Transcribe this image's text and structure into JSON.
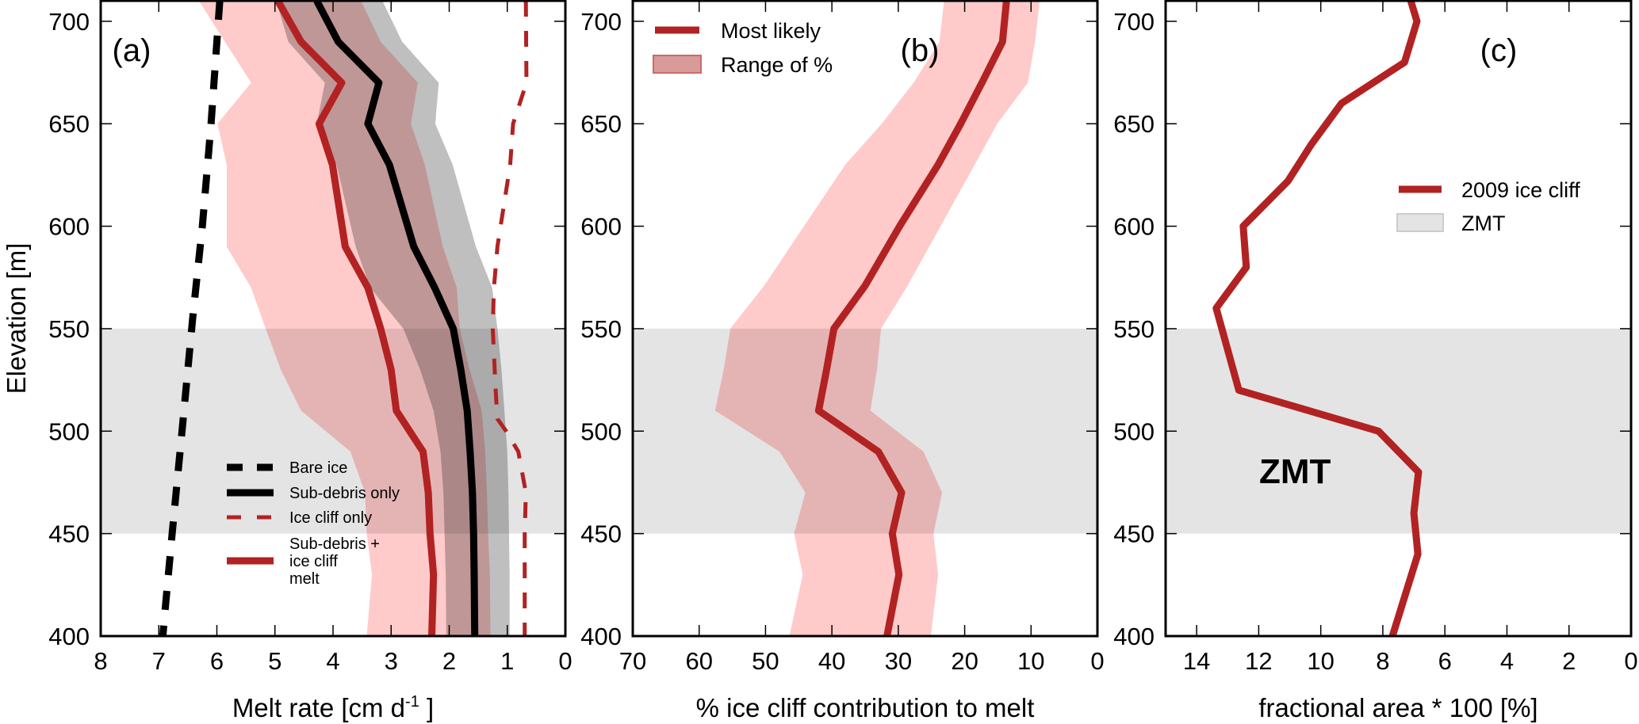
{
  "colors": {
    "red": "#b22222",
    "pink_band": "#ffcaca",
    "gray_band": "#bfbfbf",
    "zmt_band": "#e4e4e4",
    "black": "#000000"
  },
  "chart_data": [
    {
      "type": "line",
      "panel_label": "(a)",
      "xlabel": {
        "text": "Melt rate [cm d",
        "superscript": "-1",
        "suffix": " ]"
      },
      "ylabel": "Elevation [m]",
      "xlim": [
        8,
        0
      ],
      "ylim": [
        400,
        710
      ],
      "xticks": [
        8,
        7,
        6,
        5,
        4,
        3,
        2,
        1,
        0
      ],
      "yticks": [
        400,
        450,
        500,
        550,
        600,
        650,
        700
      ],
      "zmt_band": [
        450,
        550
      ],
      "bands": [
        {
          "name": "Sub-debris only range",
          "color_key": "gray_band",
          "elevation": [
            710,
            690,
            670,
            650,
            630,
            590,
            570,
            550,
            530,
            510,
            490,
            470,
            450,
            430,
            400
          ],
          "left": [
            4.98,
            4.77,
            4.14,
            4.28,
            3.94,
            3.61,
            3.36,
            2.79,
            2.5,
            2.27,
            2.15,
            2.1,
            2.08,
            2.06,
            2.05
          ],
          "right": [
            3.15,
            2.81,
            2.18,
            2.24,
            1.94,
            1.54,
            1.26,
            1.17,
            1.1,
            1.05,
            1.0,
            0.98,
            0.97,
            0.96,
            0.96
          ]
        },
        {
          "name": "Sub-debris + ice cliff range",
          "color_key": "pink_band",
          "elevation": [
            710,
            690,
            670,
            650,
            630,
            590,
            570,
            550,
            530,
            510,
            490,
            470,
            450,
            430,
            400
          ],
          "left": [
            6.31,
            5.86,
            5.41,
            5.99,
            5.83,
            5.83,
            5.41,
            5.16,
            4.9,
            4.55,
            3.7,
            3.45,
            3.42,
            3.33,
            3.42
          ],
          "right": [
            3.52,
            3.18,
            2.54,
            2.66,
            2.42,
            2.11,
            1.87,
            1.82,
            1.65,
            1.44,
            1.38,
            1.35,
            1.33,
            1.3,
            1.29
          ]
        }
      ],
      "series": [
        {
          "name": "Bare ice",
          "style": "dash-thick",
          "color_key": "black",
          "elevation": [
            710,
            650,
            600,
            557,
            500,
            450,
            410,
            400
          ],
          "values": [
            5.95,
            6.1,
            6.25,
            6.41,
            6.6,
            6.77,
            6.9,
            6.93
          ]
        },
        {
          "name": "Sub-debris only",
          "style": "solid",
          "color_key": "black",
          "elevation": [
            710,
            690,
            670,
            650,
            630,
            590,
            570,
            550,
            530,
            510,
            490,
            470,
            450,
            430,
            400
          ],
          "values": [
            4.28,
            3.91,
            3.21,
            3.4,
            3.03,
            2.61,
            2.25,
            1.93,
            1.8,
            1.69,
            1.64,
            1.6,
            1.58,
            1.57,
            1.56
          ]
        },
        {
          "name": "Ice cliff only",
          "style": "dash-thin",
          "color_key": "red",
          "elevation": [
            710,
            670,
            650,
            630,
            590,
            570,
            550,
            520,
            506,
            500,
            490,
            470,
            450,
            410,
            400
          ],
          "values": [
            0.68,
            0.67,
            0.9,
            0.95,
            1.17,
            1.23,
            1.25,
            1.2,
            1.17,
            1.02,
            0.81,
            0.68,
            0.7,
            0.7,
            0.7
          ]
        },
        {
          "name": "Sub-debris + ice cliff melt",
          "style": "solid",
          "color_key": "red",
          "elevation": [
            710,
            690,
            670,
            650,
            630,
            590,
            570,
            550,
            530,
            510,
            490,
            470,
            450,
            430,
            400
          ],
          "values": [
            4.95,
            4.55,
            3.85,
            4.24,
            4.01,
            3.79,
            3.4,
            3.18,
            3.0,
            2.91,
            2.45,
            2.36,
            2.33,
            2.27,
            2.3
          ]
        }
      ],
      "legend": {
        "placement": "lower-center",
        "entries": [
          {
            "lines": [
              "Bare ice"
            ],
            "style": "dash-thick",
            "color_key": "black"
          },
          {
            "lines": [
              "Sub-debris only"
            ],
            "style": "solid",
            "color_key": "black"
          },
          {
            "lines": [
              "Ice cliff only"
            ],
            "style": "dash-thin",
            "color_key": "red"
          },
          {
            "lines": [
              "Sub-debris +",
              "ice cliff",
              "melt"
            ],
            "style": "solid",
            "color_key": "red"
          }
        ]
      }
    },
    {
      "type": "line",
      "panel_label": "(b)",
      "xlabel": {
        "text": "% ice cliff contribution to melt"
      },
      "ylabel": "",
      "xlim": [
        70,
        0
      ],
      "ylim": [
        400,
        710
      ],
      "xticks": [
        70,
        60,
        50,
        40,
        30,
        20,
        10,
        0
      ],
      "yticks": [
        400,
        450,
        500,
        550,
        600,
        650,
        700
      ],
      "zmt_band": [
        450,
        550
      ],
      "bands": [
        {
          "name": "Range of %",
          "color_key": "pink_band",
          "elevation": [
            710,
            690,
            670,
            650,
            630,
            571,
            550,
            530,
            510,
            490,
            470,
            450,
            430,
            400
          ],
          "left": [
            23.1,
            23.8,
            27.7,
            32.5,
            38,
            50.2,
            55.3,
            56.3,
            57.6,
            47.9,
            44,
            45.7,
            44.4,
            46.4
          ],
          "right": [
            8.7,
            9.4,
            10.5,
            15.1,
            18.5,
            28.6,
            32.6,
            33.2,
            34.2,
            26.2,
            23.4,
            24.7,
            24,
            25.1
          ]
        }
      ],
      "series": [
        {
          "name": "Most likely",
          "style": "solid",
          "color_key": "red",
          "elevation": [
            710,
            690,
            670,
            650,
            630,
            600,
            571,
            550,
            530,
            510,
            490,
            470,
            450,
            430,
            400
          ],
          "values": [
            13.7,
            14.3,
            17.4,
            20.6,
            24,
            29.8,
            35,
            39.7,
            40.8,
            42,
            33,
            29.5,
            30.9,
            29.9,
            31.7
          ]
        }
      ],
      "legend": {
        "placement": "top-left",
        "entries": [
          {
            "lines": [
              "Most likely"
            ],
            "style": "solid",
            "color_key": "red"
          },
          {
            "lines": [
              "Range of %"
            ],
            "style": "patch-red"
          }
        ]
      }
    },
    {
      "type": "line",
      "panel_label": "(c)",
      "xlabel": {
        "text": "fractional area * 100 [%]"
      },
      "ylabel": "",
      "xlim": [
        15,
        0
      ],
      "ylim": [
        400,
        710
      ],
      "xticks": [
        14,
        12,
        10,
        8,
        6,
        4,
        2,
        0
      ],
      "yticks": [
        400,
        450,
        500,
        550,
        600,
        650,
        700
      ],
      "zmt_band": [
        450,
        550
      ],
      "zmt_annotation": "ZMT",
      "bands": [],
      "series": [
        {
          "name": "2009 ice cliff",
          "style": "solid",
          "color_key": "red",
          "elevation": [
            710,
            700,
            680,
            660,
            640,
            622,
            600,
            580,
            560,
            520,
            500,
            480,
            460,
            440,
            400
          ],
          "values": [
            7.1,
            6.9,
            7.3,
            9.33,
            10.3,
            11.06,
            12.5,
            12.4,
            13.37,
            12.64,
            8.14,
            6.85,
            7.0,
            6.87,
            7.69
          ]
        }
      ],
      "legend": {
        "placement": "center-right",
        "entries": [
          {
            "lines": [
              "2009 ice cliff"
            ],
            "style": "solid",
            "color_key": "red"
          },
          {
            "lines": [
              "ZMT"
            ],
            "style": "patch-gray"
          }
        ]
      }
    }
  ]
}
